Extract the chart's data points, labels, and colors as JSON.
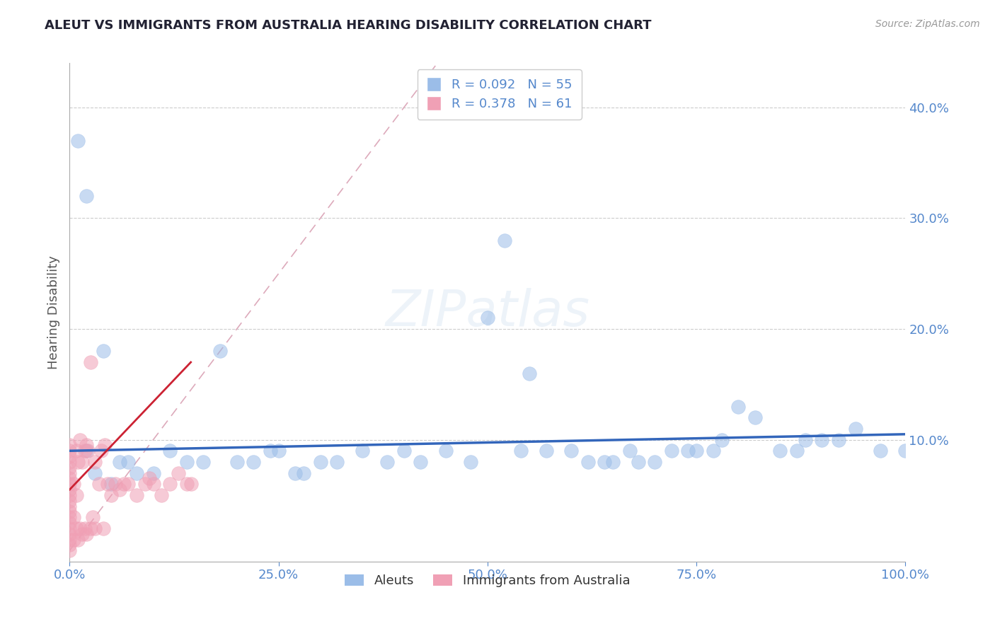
{
  "title": "ALEUT VS IMMIGRANTS FROM AUSTRALIA HEARING DISABILITY CORRELATION CHART",
  "source": "Source: ZipAtlas.com",
  "ylabel": "Hearing Disability",
  "xlim": [
    0,
    1.0
  ],
  "ylim": [
    -0.01,
    0.44
  ],
  "y_ticks": [
    0.1,
    0.2,
    0.3,
    0.4
  ],
  "x_ticks": [
    0.0,
    0.25,
    0.5,
    0.75,
    1.0
  ],
  "legend_entry1": "R = 0.092   N = 55",
  "legend_entry2": "R = 0.378   N = 61",
  "legend_label1": "Aleuts",
  "legend_label2": "Immigrants from Australia",
  "blue_color": "#9BBDE8",
  "pink_color": "#F0A0B5",
  "trendline_blue_color": "#3366BB",
  "trendline_pink_color": "#CC2233",
  "diag_color": "#DDAABB",
  "grid_color": "#CCCCCC",
  "title_color": "#222233",
  "axis_color": "#5588CC",
  "background_color": "#FFFFFF",
  "aleuts_x": [
    0.01,
    0.02,
    0.02,
    0.03,
    0.04,
    0.05,
    0.06,
    0.07,
    0.08,
    0.1,
    0.12,
    0.14,
    0.16,
    0.18,
    0.2,
    0.22,
    0.24,
    0.25,
    0.27,
    0.28,
    0.3,
    0.32,
    0.35,
    0.38,
    0.4,
    0.42,
    0.45,
    0.48,
    0.5,
    0.52,
    0.54,
    0.55,
    0.57,
    0.6,
    0.62,
    0.64,
    0.65,
    0.67,
    0.68,
    0.7,
    0.72,
    0.74,
    0.75,
    0.77,
    0.78,
    0.8,
    0.82,
    0.85,
    0.87,
    0.88,
    0.9,
    0.92,
    0.94,
    0.97,
    1.0
  ],
  "aleuts_y": [
    0.37,
    0.32,
    0.09,
    0.07,
    0.18,
    0.06,
    0.08,
    0.08,
    0.07,
    0.07,
    0.09,
    0.08,
    0.08,
    0.18,
    0.08,
    0.08,
    0.09,
    0.09,
    0.07,
    0.07,
    0.08,
    0.08,
    0.09,
    0.08,
    0.09,
    0.08,
    0.09,
    0.08,
    0.21,
    0.28,
    0.09,
    0.16,
    0.09,
    0.09,
    0.08,
    0.08,
    0.08,
    0.09,
    0.08,
    0.08,
    0.09,
    0.09,
    0.09,
    0.09,
    0.1,
    0.13,
    0.12,
    0.09,
    0.09,
    0.1,
    0.1,
    0.1,
    0.11,
    0.09,
    0.09
  ],
  "immigrants_x": [
    0.0,
    0.0,
    0.0,
    0.0,
    0.0,
    0.0,
    0.0,
    0.0,
    0.0,
    0.0,
    0.0,
    0.0,
    0.0,
    0.0,
    0.0,
    0.0,
    0.0,
    0.0,
    0.0,
    0.0,
    0.005,
    0.005,
    0.005,
    0.008,
    0.008,
    0.008,
    0.01,
    0.01,
    0.012,
    0.012,
    0.015,
    0.015,
    0.018,
    0.018,
    0.02,
    0.02,
    0.022,
    0.025,
    0.025,
    0.028,
    0.03,
    0.03,
    0.035,
    0.038,
    0.04,
    0.042,
    0.045,
    0.05,
    0.055,
    0.06,
    0.065,
    0.07,
    0.08,
    0.09,
    0.095,
    0.1,
    0.11,
    0.12,
    0.13,
    0.14,
    0.145
  ],
  "immigrants_y": [
    0.0,
    0.005,
    0.01,
    0.015,
    0.02,
    0.025,
    0.03,
    0.035,
    0.04,
    0.045,
    0.05,
    0.055,
    0.06,
    0.065,
    0.07,
    0.075,
    0.08,
    0.085,
    0.09,
    0.095,
    0.01,
    0.03,
    0.06,
    0.02,
    0.05,
    0.09,
    0.01,
    0.08,
    0.02,
    0.1,
    0.015,
    0.08,
    0.02,
    0.09,
    0.015,
    0.095,
    0.09,
    0.02,
    0.17,
    0.03,
    0.02,
    0.08,
    0.06,
    0.09,
    0.02,
    0.095,
    0.06,
    0.05,
    0.06,
    0.055,
    0.06,
    0.06,
    0.05,
    0.06,
    0.065,
    0.06,
    0.05,
    0.06,
    0.07,
    0.06,
    0.06
  ],
  "blue_trendline_x": [
    0.0,
    1.0
  ],
  "blue_trendline_y": [
    0.09,
    0.105
  ],
  "pink_trendline_x": [
    0.0,
    0.145
  ],
  "pink_trendline_y": [
    0.055,
    0.17
  ]
}
